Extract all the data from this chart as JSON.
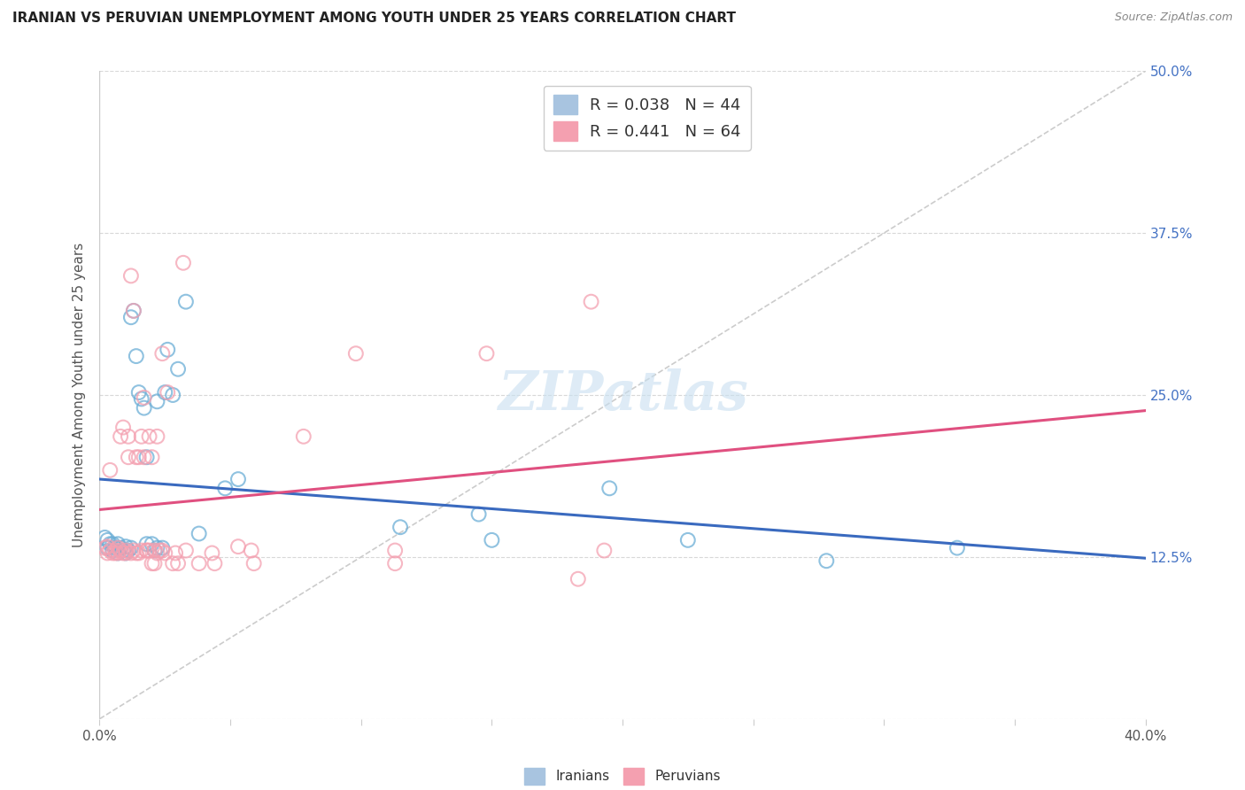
{
  "title": "IRANIAN VS PERUVIAN UNEMPLOYMENT AMONG YOUTH UNDER 25 YEARS CORRELATION CHART",
  "source": "Source: ZipAtlas.com",
  "ylabel": "Unemployment Among Youth under 25 years",
  "xlim": [
    0.0,
    0.4
  ],
  "ylim": [
    0.0,
    0.5
  ],
  "xticks": [
    0.0,
    0.05,
    0.1,
    0.15,
    0.2,
    0.25,
    0.3,
    0.35,
    0.4
  ],
  "xticklabels": [
    "0.0%",
    "",
    "",
    "",
    "",
    "",
    "",
    "",
    "40.0%"
  ],
  "yticks": [
    0.0,
    0.125,
    0.25,
    0.375,
    0.5
  ],
  "yticklabels": [
    "",
    "12.5%",
    "25.0%",
    "37.5%",
    "50.0%"
  ],
  "watermark": "ZIPatlas",
  "iranian_color": "#6baed6",
  "peruvian_color": "#f4a0b0",
  "background_color": "#ffffff",
  "grid_color": "#d8d8d8",
  "iranian_points": [
    [
      0.002,
      0.14
    ],
    [
      0.003,
      0.138
    ],
    [
      0.003,
      0.132
    ],
    [
      0.004,
      0.135
    ],
    [
      0.005,
      0.13
    ],
    [
      0.005,
      0.135
    ],
    [
      0.006,
      0.132
    ],
    [
      0.007,
      0.135
    ],
    [
      0.007,
      0.128
    ],
    [
      0.008,
      0.132
    ],
    [
      0.009,
      0.13
    ],
    [
      0.01,
      0.133
    ],
    [
      0.01,
      0.128
    ],
    [
      0.011,
      0.13
    ],
    [
      0.012,
      0.132
    ],
    [
      0.012,
      0.31
    ],
    [
      0.013,
      0.315
    ],
    [
      0.014,
      0.28
    ],
    [
      0.015,
      0.252
    ],
    [
      0.016,
      0.247
    ],
    [
      0.017,
      0.24
    ],
    [
      0.018,
      0.135
    ],
    [
      0.018,
      0.202
    ],
    [
      0.02,
      0.135
    ],
    [
      0.021,
      0.13
    ],
    [
      0.022,
      0.132
    ],
    [
      0.022,
      0.245
    ],
    [
      0.024,
      0.132
    ],
    [
      0.025,
      0.252
    ],
    [
      0.026,
      0.285
    ],
    [
      0.028,
      0.25
    ],
    [
      0.03,
      0.27
    ],
    [
      0.033,
      0.322
    ],
    [
      0.038,
      0.143
    ],
    [
      0.048,
      0.178
    ],
    [
      0.053,
      0.185
    ],
    [
      0.115,
      0.148
    ],
    [
      0.145,
      0.158
    ],
    [
      0.15,
      0.138
    ],
    [
      0.195,
      0.178
    ],
    [
      0.225,
      0.138
    ],
    [
      0.278,
      0.122
    ],
    [
      0.328,
      0.132
    ]
  ],
  "peruvian_points": [
    [
      0.002,
      0.132
    ],
    [
      0.003,
      0.133
    ],
    [
      0.003,
      0.128
    ],
    [
      0.004,
      0.13
    ],
    [
      0.004,
      0.192
    ],
    [
      0.005,
      0.128
    ],
    [
      0.006,
      0.128
    ],
    [
      0.006,
      0.13
    ],
    [
      0.007,
      0.132
    ],
    [
      0.007,
      0.128
    ],
    [
      0.008,
      0.13
    ],
    [
      0.008,
      0.218
    ],
    [
      0.009,
      0.225
    ],
    [
      0.009,
      0.128
    ],
    [
      0.01,
      0.13
    ],
    [
      0.01,
      0.128
    ],
    [
      0.011,
      0.218
    ],
    [
      0.011,
      0.202
    ],
    [
      0.012,
      0.342
    ],
    [
      0.012,
      0.128
    ],
    [
      0.013,
      0.315
    ],
    [
      0.013,
      0.13
    ],
    [
      0.014,
      0.202
    ],
    [
      0.014,
      0.128
    ],
    [
      0.015,
      0.128
    ],
    [
      0.015,
      0.202
    ],
    [
      0.016,
      0.13
    ],
    [
      0.016,
      0.218
    ],
    [
      0.017,
      0.248
    ],
    [
      0.017,
      0.202
    ],
    [
      0.018,
      0.13
    ],
    [
      0.018,
      0.13
    ],
    [
      0.019,
      0.218
    ],
    [
      0.019,
      0.13
    ],
    [
      0.02,
      0.12
    ],
    [
      0.02,
      0.202
    ],
    [
      0.021,
      0.13
    ],
    [
      0.021,
      0.12
    ],
    [
      0.022,
      0.128
    ],
    [
      0.022,
      0.218
    ],
    [
      0.023,
      0.13
    ],
    [
      0.024,
      0.282
    ],
    [
      0.024,
      0.13
    ],
    [
      0.025,
      0.128
    ],
    [
      0.026,
      0.252
    ],
    [
      0.028,
      0.12
    ],
    [
      0.029,
      0.128
    ],
    [
      0.03,
      0.12
    ],
    [
      0.032,
      0.352
    ],
    [
      0.033,
      0.13
    ],
    [
      0.038,
      0.12
    ],
    [
      0.043,
      0.128
    ],
    [
      0.044,
      0.12
    ],
    [
      0.053,
      0.133
    ],
    [
      0.058,
      0.13
    ],
    [
      0.059,
      0.12
    ],
    [
      0.078,
      0.218
    ],
    [
      0.098,
      0.282
    ],
    [
      0.113,
      0.13
    ],
    [
      0.113,
      0.12
    ],
    [
      0.148,
      0.282
    ],
    [
      0.183,
      0.108
    ],
    [
      0.188,
      0.322
    ],
    [
      0.193,
      0.13
    ]
  ],
  "diag_line": [
    [
      0.0,
      0.0
    ],
    [
      0.4,
      0.5
    ]
  ]
}
